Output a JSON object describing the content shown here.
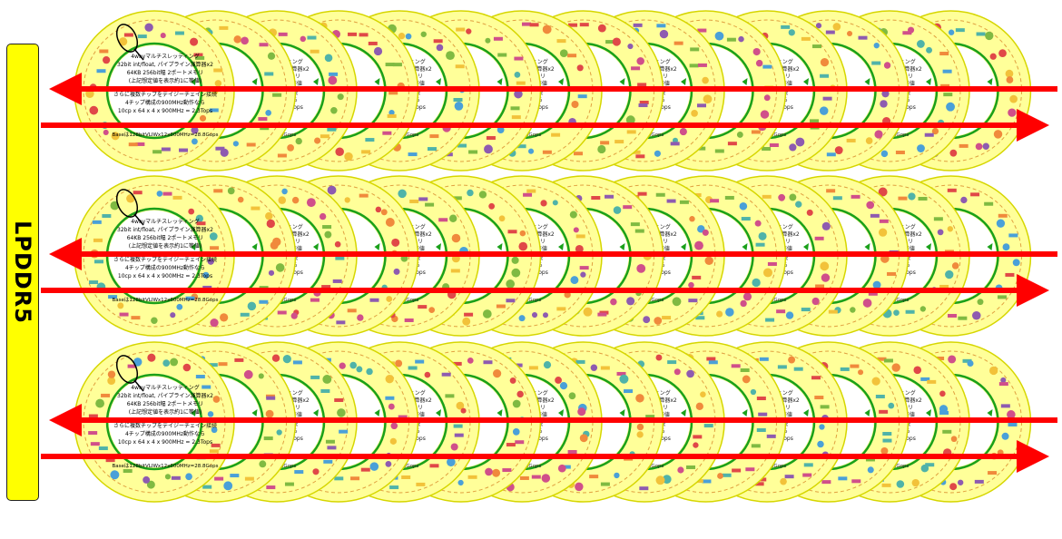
{
  "memory_bar": {
    "label": "LPDDR5",
    "color": "#ffff00"
  },
  "core_text": {
    "lines": [
      "4wayマルチスレッディング",
      "32bit int/float, パイプライン演算器x2",
      "64KB 256bit幅 2ポートメモリ",
      "(上記想定値を表示約1に等値)",
      "さらに複数チップをデイジーチェイン接続",
      "4チップ構成の900MHz動作なら",
      "10cp x 64 x 4 x 900MHz = 2.3Tops"
    ],
    "base_line": "Baseは128bitVLIWx12x600MHz=28.8Gops"
  },
  "core_fragments": {
    "lines": [
      "ッディング",
      "ライン演算器x2",
      "トメモリ",
      "約1に等値",
      "ン接続",
      "作なら",
      "= 2.3Tops"
    ],
    "base": "=28.8Gops"
  },
  "colors": {
    "ring_fill": "#ffff99",
    "ring_stroke": "#d6d600",
    "green_ring": "#1aa01a",
    "arrow": "#ff0000",
    "dots": [
      "#4aa0d8",
      "#f08a3c",
      "#7fba42",
      "#8e5bb0",
      "#e04848",
      "#f2c23a",
      "#4fb3a9",
      "#d04f8a"
    ]
  },
  "layout_counts": {
    "rows": 3,
    "columns": 14
  }
}
